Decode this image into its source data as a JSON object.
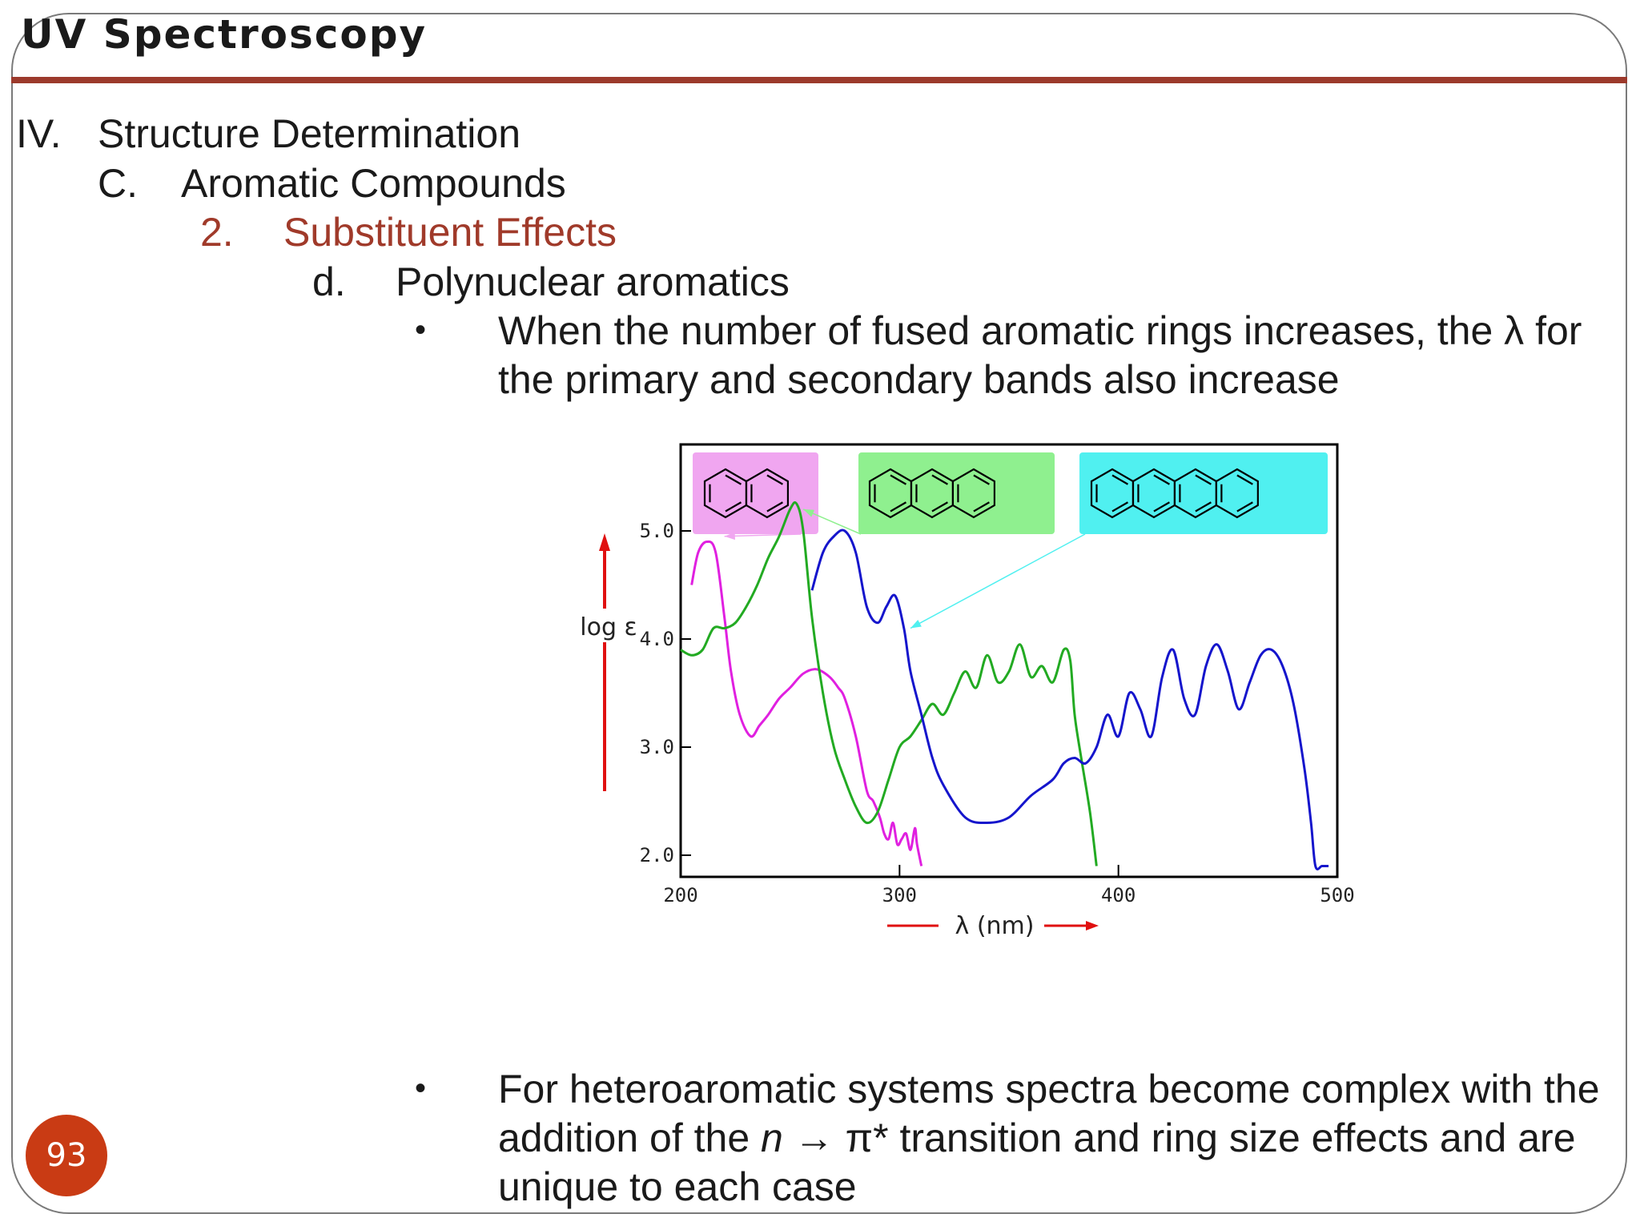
{
  "slide": {
    "title": "UV Spectroscopy",
    "page_number": "93",
    "outline": {
      "level1": {
        "num": "IV.",
        "text": "Structure Determination"
      },
      "level2": {
        "num": "C.",
        "text": "Aromatic Compounds"
      },
      "level3": {
        "num": "2.",
        "text": "Substituent Effects"
      },
      "level4": {
        "num": "d.",
        "text": "Polynuclear aromatics"
      }
    },
    "bullet_glyph": "•",
    "bullet1": "When the number of fused aromatic rings increases, the λ for the primary and secondary bands also increase",
    "bullet2": {
      "before": "For heteroaromatic systems spectra become complex with the addition of the ",
      "n": "n",
      "arrow": " → π* ",
      "after": "transition and ring size effects and are unique to each case"
    },
    "colors": {
      "accent": "#a03a2a",
      "rule": "#9c3a2c",
      "badge": "#c93b14"
    }
  },
  "chart_data": {
    "type": "line",
    "xlabel": "λ (nm)",
    "ylabel": "log ε",
    "xlim": [
      200,
      500
    ],
    "ylim": [
      1.8,
      5.8
    ],
    "x_ticks": [
      "200",
      "300",
      "400",
      "500"
    ],
    "y_ticks": [
      "5.0",
      "4.0",
      "3.0",
      "2.0"
    ],
    "grid": false,
    "legend": "structure drawings at top: naphthalene (pink), anthracene (green), tetracene (cyan)",
    "series": [
      {
        "color": "#e020e0",
        "legend_color": "#f0a6f0",
        "x": [
          205,
          208,
          212,
          216,
          220,
          223,
          227,
          232,
          236,
          240,
          245,
          250,
          256,
          262,
          268,
          272,
          275,
          280,
          285,
          288,
          291,
          293,
          295,
          297,
          299,
          301,
          303,
          305,
          307,
          308,
          310
        ],
        "y": [
          4.5,
          4.8,
          4.9,
          4.8,
          4.2,
          3.7,
          3.3,
          3.1,
          3.2,
          3.3,
          3.45,
          3.55,
          3.68,
          3.72,
          3.65,
          3.55,
          3.45,
          3.1,
          2.6,
          2.5,
          2.35,
          2.2,
          2.15,
          2.3,
          2.1,
          2.15,
          2.2,
          2.05,
          2.25,
          2.1,
          1.9
        ]
      },
      {
        "color": "#22aa22",
        "legend_color": "#8ff08f",
        "x": [
          200,
          205,
          210,
          215,
          220,
          225,
          230,
          235,
          240,
          245,
          250,
          253,
          256,
          260,
          265,
          270,
          275,
          280,
          285,
          290,
          295,
          300,
          305,
          310,
          315,
          320,
          325,
          330,
          335,
          340,
          345,
          350,
          355,
          360,
          365,
          370,
          375,
          378,
          380,
          383,
          387,
          390
        ],
        "y": [
          3.9,
          3.85,
          3.9,
          4.1,
          4.1,
          4.15,
          4.3,
          4.5,
          4.75,
          4.95,
          5.2,
          5.25,
          5.0,
          4.2,
          3.5,
          3.0,
          2.7,
          2.45,
          2.3,
          2.4,
          2.7,
          3.0,
          3.1,
          3.25,
          3.4,
          3.3,
          3.5,
          3.7,
          3.55,
          3.85,
          3.6,
          3.7,
          3.95,
          3.65,
          3.75,
          3.6,
          3.9,
          3.8,
          3.3,
          2.9,
          2.4,
          1.9
        ]
      },
      {
        "color": "#1515cc",
        "legend_color": "#50f0f0",
        "x": [
          260,
          265,
          270,
          275,
          280,
          285,
          290,
          294,
          298,
          302,
          305,
          310,
          315,
          320,
          330,
          340,
          350,
          360,
          370,
          375,
          380,
          385,
          390,
          395,
          400,
          405,
          410,
          415,
          420,
          425,
          430,
          435,
          440,
          445,
          450,
          455,
          460,
          465,
          470,
          475,
          480,
          485,
          488,
          490,
          493,
          496
        ],
        "y": [
          4.45,
          4.8,
          4.95,
          5.0,
          4.8,
          4.3,
          4.15,
          4.3,
          4.4,
          4.1,
          3.7,
          3.3,
          2.9,
          2.65,
          2.35,
          2.3,
          2.35,
          2.55,
          2.7,
          2.85,
          2.9,
          2.85,
          3.0,
          3.3,
          3.1,
          3.5,
          3.35,
          3.1,
          3.65,
          3.9,
          3.45,
          3.3,
          3.75,
          3.95,
          3.7,
          3.35,
          3.6,
          3.85,
          3.9,
          3.75,
          3.4,
          2.8,
          2.3,
          1.9,
          1.9,
          1.9
        ]
      }
    ]
  }
}
